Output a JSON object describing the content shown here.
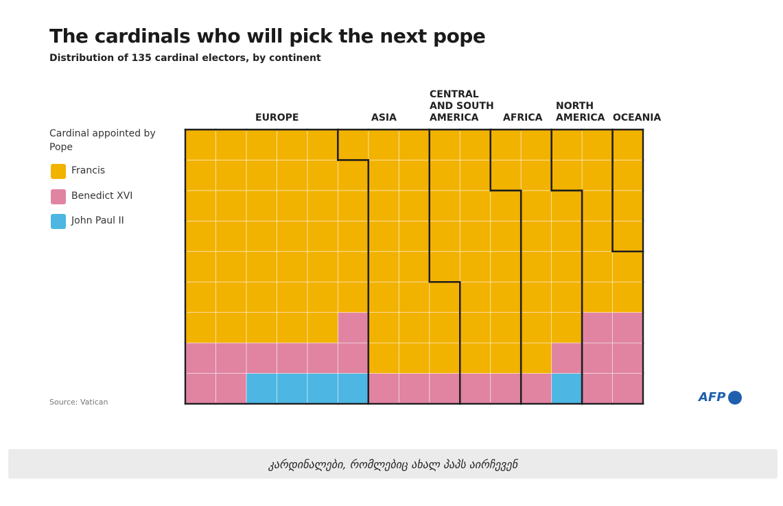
{
  "chart_data": {
    "type": "waffle",
    "title": "The cardinals who will pick the next pope",
    "subtitle": "Distribution of 135 cardinal electors, by continent",
    "legend_title": "Cardinal appointed by Pope",
    "categories": [
      "EUROPE",
      "ASIA",
      "CENTRAL AND SOUTH AMERICA",
      "AFRICA",
      "NORTH AMERICA",
      "OCEANIA"
    ],
    "series": [
      {
        "name": "Francis",
        "color": "#f2b200",
        "values": [
          40,
          20,
          19,
          15,
          10,
          4
        ]
      },
      {
        "name": "Benedict XVI",
        "color": "#e084a2",
        "values": [
          9,
          3,
          2,
          2,
          6,
          0
        ]
      },
      {
        "name": "John Paul II",
        "color": "#4db6e2",
        "values": [
          4,
          0,
          0,
          1,
          0,
          0
        ]
      }
    ],
    "source": "Source: Vatican",
    "logo": "AFP"
  },
  "caption": "კარდინალები, რომლებიც ახალ პაპს აირჩევენ"
}
